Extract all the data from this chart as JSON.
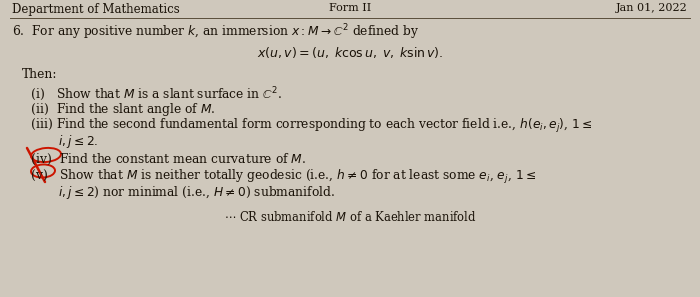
{
  "background_color": "#cfc8bc",
  "header_text": "Department of Mathematics",
  "header_right1": "Form II",
  "header_right2": "Jan 01, 2022",
  "text_color": "#1a1208",
  "header_line_color": "#5a4e3a",
  "circle_color": "#cc1500",
  "font_size_header": 8.5,
  "font_size_body": 8.8,
  "font_size_formula": 9.0,
  "figwidth": 7.0,
  "figheight": 2.97
}
